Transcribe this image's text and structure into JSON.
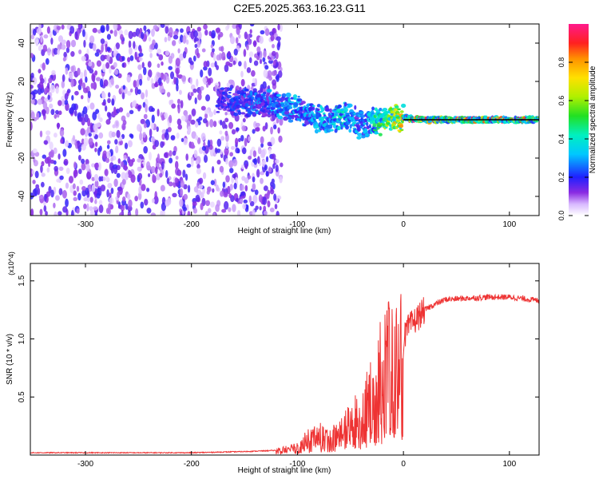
{
  "page_title": "C2E5.2025.363.16.23.G11",
  "chart_data": [
    {
      "type": "heatmap",
      "title": "C2E5.2025.363.16.23.G11",
      "xlabel": "Height of straight line (km)",
      "ylabel": "Frequency (Hz)",
      "xlim": [
        -352,
        128
      ],
      "ylim": [
        -50,
        50
      ],
      "xticks": [
        -300,
        -200,
        -100,
        0,
        100
      ],
      "yticks": [
        -40,
        -20,
        0,
        20,
        40
      ],
      "colorbar": {
        "label": "Normalized spectral amplitude",
        "range": [
          0.0,
          1.0
        ],
        "ticks": [
          "0.0",
          "0.2",
          "0.4",
          "0.6",
          "0.8"
        ]
      },
      "ridge": {
        "description": "dominant frequency track",
        "x": [
          -175,
          -150,
          -125,
          -100,
          -90,
          -80,
          -70,
          -60,
          -50,
          -40,
          -30,
          -20,
          -10,
          0,
          20,
          60,
          100,
          128
        ],
        "frequency": [
          10,
          9,
          8,
          6,
          3,
          1,
          0,
          2,
          0,
          -2,
          -1,
          0,
          1,
          1,
          0,
          0,
          0,
          0
        ],
        "amplitude": [
          0.2,
          0.25,
          0.3,
          0.35,
          0.3,
          0.4,
          0.3,
          0.45,
          0.35,
          0.3,
          0.4,
          0.55,
          0.7,
          0.8,
          0.95,
          0.95,
          0.9,
          0.9
        ]
      },
      "noise_region": {
        "x_start": -352,
        "x_end": -125,
        "amplitude": 0.1
      }
    },
    {
      "type": "line",
      "xlabel": "Height of straight line (km)",
      "ylabel": "SNR (10 * v/v)",
      "y_multiplier": "(x10^4)",
      "xlim": [
        -352,
        128
      ],
      "ylim": [
        0,
        1.65
      ],
      "xticks": [
        -300,
        -200,
        -100,
        0,
        100
      ],
      "yticks": [
        0.5,
        1.0,
        1.5
      ],
      "ytick_labels": [
        "0.5",
        "1.0",
        "1.5"
      ],
      "series": [
        {
          "name": "SNR",
          "color": "#ee3333",
          "x": [
            -352,
            -300,
            -250,
            -200,
            -150,
            -120,
            -100,
            -90,
            -80,
            -70,
            -60,
            -50,
            -40,
            -30,
            -25,
            -20,
            -15,
            -10,
            -5,
            0,
            5,
            10,
            20,
            30,
            40,
            60,
            80,
            100,
            110,
            128
          ],
          "values": [
            0.02,
            0.02,
            0.02,
            0.02,
            0.03,
            0.04,
            0.08,
            0.15,
            0.2,
            0.15,
            0.22,
            0.3,
            0.4,
            0.55,
            0.65,
            0.9,
            1.05,
            0.8,
            0.95,
            1.0,
            1.1,
            1.15,
            1.25,
            1.3,
            1.34,
            1.35,
            1.36,
            1.36,
            1.35,
            1.33
          ]
        }
      ]
    }
  ]
}
